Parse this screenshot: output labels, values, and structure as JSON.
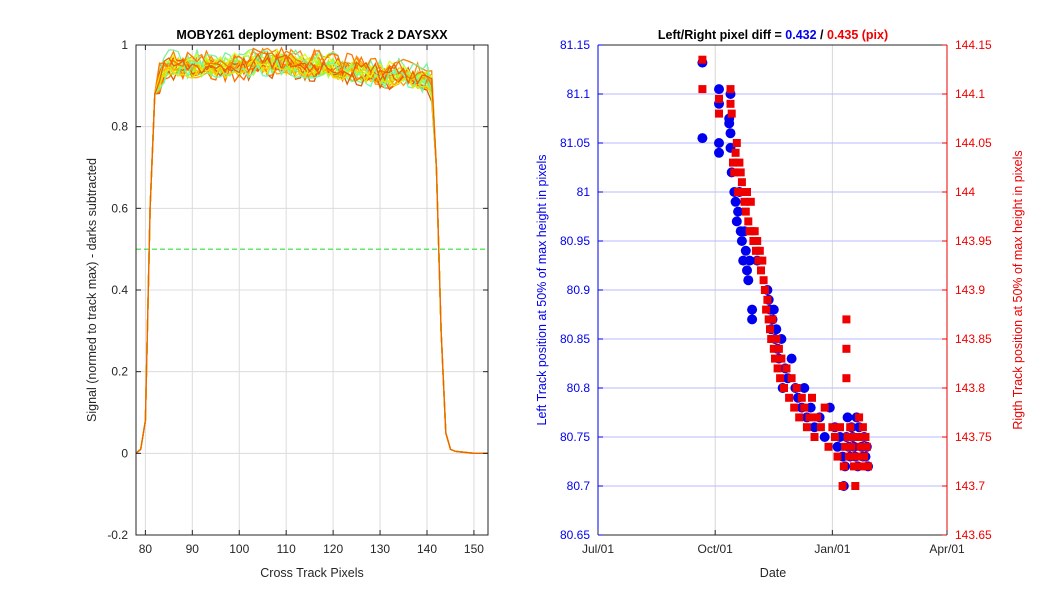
{
  "chart_data": [
    {
      "type": "line",
      "title": "MOBY261 deployment: BS02  Track 2 DAYSXX",
      "xlabel": "Cross Track Pixels",
      "ylabel": "Signal (normed to track max) - darks subtracted",
      "xlim": [
        78,
        153
      ],
      "ylim": [
        -0.2,
        1.0
      ],
      "xticks": [
        "80",
        "90",
        "100",
        "110",
        "120",
        "130",
        "140",
        "150"
      ],
      "yticks": [
        "-0.2",
        "0",
        "0.2",
        "0.4",
        "0.6",
        "0.8",
        "1"
      ],
      "grid": true,
      "reference_line": {
        "y": 0.5,
        "color": "#33dd33",
        "style": "dashed"
      },
      "profile_template": {
        "x": [
          78,
          79,
          80,
          81,
          82,
          83,
          84,
          85,
          90,
          95,
          100,
          105,
          110,
          115,
          120,
          125,
          130,
          135,
          140,
          141,
          142,
          143,
          144,
          145,
          146,
          150,
          153
        ],
        "y": [
          0.0,
          0.01,
          0.08,
          0.6,
          0.88,
          0.92,
          0.94,
          0.95,
          0.95,
          0.95,
          0.95,
          0.96,
          0.96,
          0.95,
          0.95,
          0.94,
          0.93,
          0.93,
          0.92,
          0.9,
          0.7,
          0.3,
          0.05,
          0.01,
          0.005,
          0.0,
          0.0
        ]
      },
      "series_count": 22,
      "series_colors": [
        "#ff7f00",
        "#ff9a00",
        "#ffb000",
        "#ffc800",
        "#e6e600",
        "#c8f000",
        "#aaff40",
        "#8cff60",
        "#70ff80",
        "#e05a00",
        "#ff6a00",
        "#ff8c10",
        "#ffd000",
        "#b4f000",
        "#7cf0a0",
        "#ff5000",
        "#ffa500",
        "#d4ff20",
        "#66ffb0",
        "#ff7800",
        "#f0e000",
        "#f06000"
      ]
    },
    {
      "type": "scatter",
      "title_prefix": "Left/Right pixel diff = ",
      "title_left": "0.432",
      "title_sep": " / ",
      "title_right": "0.435 (pix)",
      "xlabel": "Date",
      "ylabel_left": "Left Track position at 50% of max height in pixels",
      "ylabel_right": "Rigth Track position at 50% of max height in pixels",
      "xticks": [
        "Jul/01",
        "Oct/01",
        "Jan/01",
        "Apr/01"
      ],
      "xlim_days": [
        0,
        274
      ],
      "ylim_left": [
        80.65,
        81.15
      ],
      "ylim_right": [
        143.65,
        144.15
      ],
      "yticks_left": [
        "80.65",
        "80.7",
        "80.75",
        "80.8",
        "80.85",
        "80.9",
        "80.95",
        "81",
        "81.05",
        "81.1",
        "81.15"
      ],
      "yticks_right": [
        "143.65",
        "143.7",
        "143.75",
        "143.8",
        "143.85",
        "143.9",
        "143.95",
        "144",
        "144.05",
        "144.1",
        "144.15"
      ],
      "left_color": "#0000ee",
      "right_color": "#ee0000",
      "grid_y_color": "#b8b8ff",
      "grid_x_color": "#d6d6d6",
      "left_series": [
        {
          "date": "2015-09-21",
          "value": 81.132
        },
        {
          "date": "2015-09-21",
          "value": 81.055
        },
        {
          "date": "2015-10-04",
          "value": 81.105
        },
        {
          "date": "2015-10-04",
          "value": 81.09
        },
        {
          "date": "2015-10-04",
          "value": 81.05
        },
        {
          "date": "2015-10-04",
          "value": 81.04
        },
        {
          "date": "2015-10-12",
          "value": 81.075
        },
        {
          "date": "2015-10-12",
          "value": 81.07
        },
        {
          "date": "2015-10-13",
          "value": 81.06
        },
        {
          "date": "2015-10-13",
          "value": 81.045
        },
        {
          "date": "2015-10-13",
          "value": 81.1
        },
        {
          "date": "2015-10-14",
          "value": 81.02
        },
        {
          "date": "2015-10-16",
          "value": 81.0
        },
        {
          "date": "2015-10-17",
          "value": 80.99
        },
        {
          "date": "2015-10-18",
          "value": 80.97
        },
        {
          "date": "2015-10-19",
          "value": 80.98
        },
        {
          "date": "2015-10-20",
          "value": 81.0
        },
        {
          "date": "2015-10-21",
          "value": 80.96
        },
        {
          "date": "2015-10-22",
          "value": 80.95
        },
        {
          "date": "2015-10-23",
          "value": 80.93
        },
        {
          "date": "2015-10-24",
          "value": 80.96
        },
        {
          "date": "2015-10-25",
          "value": 80.94
        },
        {
          "date": "2015-10-26",
          "value": 80.92
        },
        {
          "date": "2015-10-27",
          "value": 80.91
        },
        {
          "date": "2015-10-28",
          "value": 80.93
        },
        {
          "date": "2015-10-30",
          "value": 80.87
        },
        {
          "date": "2015-10-30",
          "value": 80.88
        },
        {
          "date": "2015-11-03",
          "value": 80.93
        },
        {
          "date": "2015-11-11",
          "value": 80.9
        },
        {
          "date": "2015-11-12",
          "value": 80.89
        },
        {
          "date": "2015-11-13",
          "value": 80.88
        },
        {
          "date": "2015-11-14",
          "value": 80.86
        },
        {
          "date": "2015-11-15",
          "value": 80.87
        },
        {
          "date": "2015-11-16",
          "value": 80.88
        },
        {
          "date": "2015-11-17",
          "value": 80.85
        },
        {
          "date": "2015-11-18",
          "value": 80.86
        },
        {
          "date": "2015-11-19",
          "value": 80.84
        },
        {
          "date": "2015-11-20",
          "value": 80.83
        },
        {
          "date": "2015-11-22",
          "value": 80.85
        },
        {
          "date": "2015-11-23",
          "value": 80.8
        },
        {
          "date": "2015-11-25",
          "value": 80.82
        },
        {
          "date": "2015-11-27",
          "value": 80.81
        },
        {
          "date": "2015-11-30",
          "value": 80.83
        },
        {
          "date": "2015-12-03",
          "value": 80.8
        },
        {
          "date": "2015-12-05",
          "value": 80.79
        },
        {
          "date": "2015-12-08",
          "value": 80.78
        },
        {
          "date": "2015-12-10",
          "value": 80.8
        },
        {
          "date": "2015-12-12",
          "value": 80.77
        },
        {
          "date": "2015-12-15",
          "value": 80.78
        },
        {
          "date": "2015-12-18",
          "value": 80.76
        },
        {
          "date": "2015-12-22",
          "value": 80.77
        },
        {
          "date": "2015-12-26",
          "value": 80.75
        },
        {
          "date": "2015-12-30",
          "value": 80.78
        },
        {
          "date": "2016-01-03",
          "value": 80.76
        },
        {
          "date": "2016-01-05",
          "value": 80.74
        },
        {
          "date": "2016-01-07",
          "value": 80.75
        },
        {
          "date": "2016-01-09",
          "value": 80.73
        },
        {
          "date": "2016-01-10",
          "value": 80.7
        },
        {
          "date": "2016-01-11",
          "value": 80.72
        },
        {
          "date": "2016-01-12",
          "value": 80.75
        },
        {
          "date": "2016-01-13",
          "value": 80.77
        },
        {
          "date": "2016-01-14",
          "value": 80.74
        },
        {
          "date": "2016-01-15",
          "value": 80.73
        },
        {
          "date": "2016-01-16",
          "value": 80.76
        },
        {
          "date": "2016-01-17",
          "value": 80.75
        },
        {
          "date": "2016-01-18",
          "value": 80.74
        },
        {
          "date": "2016-01-19",
          "value": 80.73
        },
        {
          "date": "2016-01-20",
          "value": 80.77
        },
        {
          "date": "2016-01-21",
          "value": 80.72
        },
        {
          "date": "2016-01-22",
          "value": 80.76
        },
        {
          "date": "2016-01-24",
          "value": 80.74
        },
        {
          "date": "2016-01-25",
          "value": 80.73
        },
        {
          "date": "2016-01-26",
          "value": 80.75
        },
        {
          "date": "2016-01-27",
          "value": 80.73
        },
        {
          "date": "2016-01-28",
          "value": 80.74
        },
        {
          "date": "2016-01-29",
          "value": 80.72
        }
      ],
      "right_series": [
        {
          "date": "2015-09-21",
          "value": 144.135
        },
        {
          "date": "2015-09-21",
          "value": 144.105
        },
        {
          "date": "2015-10-04",
          "value": 144.08
        },
        {
          "date": "2015-10-04",
          "value": 144.095
        },
        {
          "date": "2015-10-13",
          "value": 144.105
        },
        {
          "date": "2015-10-13",
          "value": 144.09
        },
        {
          "date": "2015-10-14",
          "value": 144.08
        },
        {
          "date": "2015-10-15",
          "value": 144.03
        },
        {
          "date": "2015-10-16",
          "value": 144.02
        },
        {
          "date": "2015-10-17",
          "value": 144.04
        },
        {
          "date": "2015-10-18",
          "value": 144.05
        },
        {
          "date": "2015-10-19",
          "value": 144.0
        },
        {
          "date": "2015-10-20",
          "value": 144.03
        },
        {
          "date": "2015-10-21",
          "value": 144.02
        },
        {
          "date": "2015-10-22",
          "value": 144.01
        },
        {
          "date": "2015-10-23",
          "value": 144.0
        },
        {
          "date": "2015-10-24",
          "value": 143.99
        },
        {
          "date": "2015-10-25",
          "value": 143.98
        },
        {
          "date": "2015-10-26",
          "value": 144.0
        },
        {
          "date": "2015-10-27",
          "value": 143.97
        },
        {
          "date": "2015-10-28",
          "value": 143.96
        },
        {
          "date": "2015-10-29",
          "value": 143.99
        },
        {
          "date": "2015-10-30",
          "value": 143.96
        },
        {
          "date": "2015-10-31",
          "value": 143.95
        },
        {
          "date": "2015-11-01",
          "value": 143.96
        },
        {
          "date": "2015-11-02",
          "value": 143.94
        },
        {
          "date": "2015-11-03",
          "value": 143.95
        },
        {
          "date": "2015-11-04",
          "value": 143.93
        },
        {
          "date": "2015-11-05",
          "value": 143.94
        },
        {
          "date": "2015-11-06",
          "value": 143.92
        },
        {
          "date": "2015-11-07",
          "value": 143.93
        },
        {
          "date": "2015-11-08",
          "value": 143.91
        },
        {
          "date": "2015-11-09",
          "value": 143.9
        },
        {
          "date": "2015-11-10",
          "value": 143.88
        },
        {
          "date": "2015-11-11",
          "value": 143.89
        },
        {
          "date": "2015-11-12",
          "value": 143.87
        },
        {
          "date": "2015-11-13",
          "value": 143.86
        },
        {
          "date": "2015-11-14",
          "value": 143.85
        },
        {
          "date": "2015-11-15",
          "value": 143.87
        },
        {
          "date": "2015-11-16",
          "value": 143.84
        },
        {
          "date": "2015-11-17",
          "value": 143.83
        },
        {
          "date": "2015-11-18",
          "value": 143.85
        },
        {
          "date": "2015-11-19",
          "value": 143.82
        },
        {
          "date": "2015-11-20",
          "value": 143.84
        },
        {
          "date": "2015-11-21",
          "value": 143.81
        },
        {
          "date": "2015-11-22",
          "value": 143.83
        },
        {
          "date": "2015-11-24",
          "value": 143.8
        },
        {
          "date": "2015-11-26",
          "value": 143.82
        },
        {
          "date": "2015-11-28",
          "value": 143.79
        },
        {
          "date": "2015-11-30",
          "value": 143.81
        },
        {
          "date": "2015-12-02",
          "value": 143.78
        },
        {
          "date": "2015-12-04",
          "value": 143.8
        },
        {
          "date": "2015-12-06",
          "value": 143.77
        },
        {
          "date": "2015-12-08",
          "value": 143.79
        },
        {
          "date": "2015-12-10",
          "value": 143.78
        },
        {
          "date": "2015-12-12",
          "value": 143.76
        },
        {
          "date": "2015-12-14",
          "value": 143.77
        },
        {
          "date": "2015-12-16",
          "value": 143.79
        },
        {
          "date": "2015-12-18",
          "value": 143.75
        },
        {
          "date": "2015-12-20",
          "value": 143.77
        },
        {
          "date": "2015-12-23",
          "value": 143.76
        },
        {
          "date": "2015-12-26",
          "value": 143.78
        },
        {
          "date": "2015-12-29",
          "value": 143.74
        },
        {
          "date": "2016-01-01",
          "value": 143.76
        },
        {
          "date": "2016-01-03",
          "value": 143.75
        },
        {
          "date": "2016-01-05",
          "value": 143.73
        },
        {
          "date": "2016-01-07",
          "value": 143.76
        },
        {
          "date": "2016-01-09",
          "value": 143.7
        },
        {
          "date": "2016-01-10",
          "value": 143.72
        },
        {
          "date": "2016-01-11",
          "value": 143.74
        },
        {
          "date": "2016-01-12",
          "value": 143.87
        },
        {
          "date": "2016-01-12",
          "value": 143.84
        },
        {
          "date": "2016-01-12",
          "value": 143.81
        },
        {
          "date": "2016-01-13",
          "value": 143.75
        },
        {
          "date": "2016-01-14",
          "value": 143.73
        },
        {
          "date": "2016-01-15",
          "value": 143.76
        },
        {
          "date": "2016-01-16",
          "value": 143.74
        },
        {
          "date": "2016-01-17",
          "value": 143.75
        },
        {
          "date": "2016-01-18",
          "value": 143.72
        },
        {
          "date": "2016-01-19",
          "value": 143.7
        },
        {
          "date": "2016-01-20",
          "value": 143.73
        },
        {
          "date": "2016-01-21",
          "value": 143.75
        },
        {
          "date": "2016-01-22",
          "value": 143.77
        },
        {
          "date": "2016-01-23",
          "value": 143.74
        },
        {
          "date": "2016-01-24",
          "value": 143.72
        },
        {
          "date": "2016-01-25",
          "value": 143.76
        },
        {
          "date": "2016-01-26",
          "value": 143.73
        },
        {
          "date": "2016-01-27",
          "value": 143.75
        },
        {
          "date": "2016-01-28",
          "value": 143.74
        },
        {
          "date": "2016-01-29",
          "value": 143.72
        }
      ]
    }
  ]
}
